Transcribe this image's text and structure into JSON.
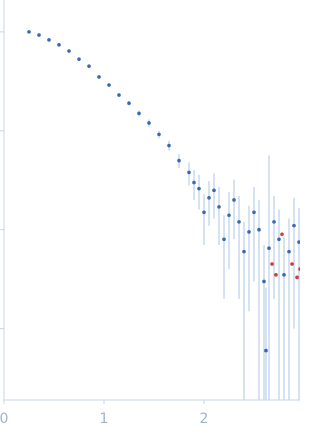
{
  "chart_data": {
    "type": "scatter",
    "xlim": [
      0,
      2.96
    ],
    "xticks": [
      0,
      1,
      2
    ],
    "ylim": [
      0.00019,
      2.1
    ],
    "yticks": [
      1,
      0.1,
      0.01,
      0.001
    ],
    "log_y": true,
    "series": [
      {
        "color": "#3a67b0",
        "error_color": "#a9c4e6",
        "x": [
          0.25,
          0.35,
          0.45,
          0.55,
          0.65,
          0.75,
          0.85,
          0.95,
          1.05,
          1.15,
          1.25,
          1.35,
          1.45,
          1.55,
          1.65,
          1.75,
          1.85,
          1.9,
          1.95,
          2.0,
          2.05,
          2.1,
          2.15,
          2.2,
          2.25,
          2.3,
          2.35,
          2.4,
          2.45,
          2.5,
          2.55,
          2.6,
          2.62,
          2.65,
          2.7,
          2.75,
          2.8,
          2.85,
          2.9,
          2.95
        ],
        "values": [
          1.0,
          0.93,
          0.83,
          0.74,
          0.64,
          0.53,
          0.45,
          0.35,
          0.29,
          0.23,
          0.19,
          0.15,
          0.12,
          0.092,
          0.071,
          0.05,
          0.038,
          0.03,
          0.026,
          0.015,
          0.021,
          0.025,
          0.017,
          0.008,
          0.014,
          0.02,
          0.012,
          0.006,
          0.0095,
          0.015,
          0.01,
          0.003,
          0.0006,
          0.0065,
          0.012,
          0.008,
          0.0035,
          0.006,
          0.011,
          0.0075
        ],
        "errors": [
          0.01,
          0.01,
          0.01,
          0.01,
          0.01,
          0.01,
          0.01,
          0.01,
          0.01,
          0.01,
          0.01,
          0.01,
          0.01,
          0.008,
          0.008,
          0.008,
          0.01,
          0.01,
          0.01,
          0.008,
          0.01,
          0.012,
          0.01,
          0.006,
          0.01,
          0.012,
          0.01,
          0.006,
          0.008,
          0.012,
          0.01,
          0.004,
          0.002,
          0.05,
          0.01,
          0.008,
          0.005,
          0.007,
          0.01,
          0.009
        ]
      },
      {
        "color": "#d83a3a",
        "x": [
          2.68,
          2.72,
          2.78,
          2.88,
          2.93,
          2.96
        ],
        "values": [
          0.0045,
          0.0035,
          0.009,
          0.0045,
          0.0033,
          0.004
        ]
      }
    ]
  }
}
